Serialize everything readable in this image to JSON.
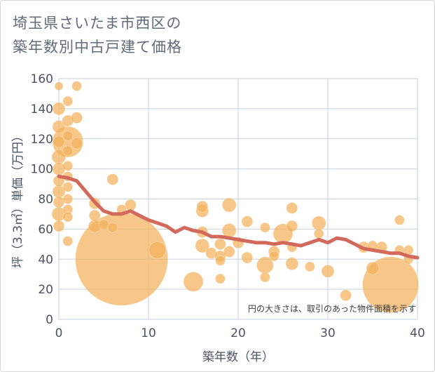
{
  "title_lines": [
    "埼玉県さいたま市西区の",
    "築年数別中古戸建て価格"
  ],
  "chart_data": {
    "type": "scatter",
    "title": "埼玉県さいたま市西区の築年数別中古戸建て価格",
    "xlabel": "築年数（年）",
    "ylabel": "坪（3.3㎡）単価（万円）",
    "xlim": [
      0,
      40
    ],
    "ylim": [
      0,
      160
    ],
    "xticks": [
      0,
      10,
      20,
      30,
      40
    ],
    "yticks": [
      0,
      20,
      40,
      60,
      80,
      100,
      120,
      140,
      160
    ],
    "grid": true,
    "note": "円の大きさは、取引のあった物件面積を示す",
    "colors": {
      "bubble": "#f2b25c",
      "trend": "#d2695a",
      "grid": "#c8d2dc",
      "text": "#4a5560"
    },
    "series": [
      {
        "type": "bubble",
        "points": [
          {
            "x": 0,
            "y": 155,
            "size": 6
          },
          {
            "x": 0,
            "y": 140,
            "size": 9
          },
          {
            "x": 0,
            "y": 128,
            "size": 9
          },
          {
            "x": 0,
            "y": 118,
            "size": 8
          },
          {
            "x": 0,
            "y": 108,
            "size": 10
          },
          {
            "x": 0,
            "y": 100,
            "size": 9
          },
          {
            "x": 0,
            "y": 92,
            "size": 8
          },
          {
            "x": 0,
            "y": 85,
            "size": 9
          },
          {
            "x": 0,
            "y": 78,
            "size": 8
          },
          {
            "x": 0,
            "y": 70,
            "size": 10
          },
          {
            "x": 0,
            "y": 62,
            "size": 8
          },
          {
            "x": 1,
            "y": 145,
            "size": 7
          },
          {
            "x": 1,
            "y": 132,
            "size": 8
          },
          {
            "x": 1,
            "y": 122,
            "size": 7
          },
          {
            "x": 1,
            "y": 112,
            "size": 7
          },
          {
            "x": 1,
            "y": 102,
            "size": 7
          },
          {
            "x": 1,
            "y": 95,
            "size": 7
          },
          {
            "x": 1,
            "y": 88,
            "size": 7
          },
          {
            "x": 1,
            "y": 80,
            "size": 7
          },
          {
            "x": 1,
            "y": 73,
            "size": 7
          },
          {
            "x": 1,
            "y": 68,
            "size": 7
          },
          {
            "x": 1,
            "y": 52,
            "size": 7
          },
          {
            "x": 1,
            "y": 118,
            "size": 22
          },
          {
            "x": 2,
            "y": 155,
            "size": 7
          },
          {
            "x": 2,
            "y": 134,
            "size": 8
          },
          {
            "x": 2,
            "y": 117,
            "size": 8
          },
          {
            "x": 4,
            "y": 77,
            "size": 8
          },
          {
            "x": 4,
            "y": 69,
            "size": 8
          },
          {
            "x": 4,
            "y": 62,
            "size": 9
          },
          {
            "x": 5,
            "y": 63,
            "size": 7
          },
          {
            "x": 6,
            "y": 93,
            "size": 8
          },
          {
            "x": 6,
            "y": 61,
            "size": 7
          },
          {
            "x": 7,
            "y": 40,
            "size": 66
          },
          {
            "x": 7,
            "y": 73,
            "size": 7
          },
          {
            "x": 8,
            "y": 76,
            "size": 8
          },
          {
            "x": 11,
            "y": 46,
            "size": 12
          },
          {
            "x": 15,
            "y": 25,
            "size": 14
          },
          {
            "x": 16,
            "y": 75,
            "size": 8
          },
          {
            "x": 16,
            "y": 72,
            "size": 9
          },
          {
            "x": 16,
            "y": 58,
            "size": 8
          },
          {
            "x": 16,
            "y": 49,
            "size": 10
          },
          {
            "x": 17,
            "y": 44,
            "size": 8
          },
          {
            "x": 18,
            "y": 50,
            "size": 8
          },
          {
            "x": 18,
            "y": 42,
            "size": 8
          },
          {
            "x": 18,
            "y": 39,
            "size": 7
          },
          {
            "x": 18,
            "y": 27,
            "size": 7
          },
          {
            "x": 19,
            "y": 76,
            "size": 10
          },
          {
            "x": 19,
            "y": 59,
            "size": 10
          },
          {
            "x": 19,
            "y": 45,
            "size": 8
          },
          {
            "x": 20,
            "y": 51,
            "size": 8
          },
          {
            "x": 21,
            "y": 65,
            "size": 8
          },
          {
            "x": 21,
            "y": 41,
            "size": 8
          },
          {
            "x": 23,
            "y": 61,
            "size": 7
          },
          {
            "x": 23,
            "y": 36,
            "size": 12
          },
          {
            "x": 23,
            "y": 28,
            "size": 7
          },
          {
            "x": 24,
            "y": 45,
            "size": 8
          },
          {
            "x": 24,
            "y": 42,
            "size": 7
          },
          {
            "x": 25,
            "y": 57,
            "size": 14
          },
          {
            "x": 26,
            "y": 74,
            "size": 8
          },
          {
            "x": 26,
            "y": 62,
            "size": 8
          },
          {
            "x": 26,
            "y": 37,
            "size": 9
          },
          {
            "x": 26,
            "y": 48,
            "size": 7
          },
          {
            "x": 28,
            "y": 35,
            "size": 7
          },
          {
            "x": 29,
            "y": 64,
            "size": 10
          },
          {
            "x": 29,
            "y": 57,
            "size": 7
          },
          {
            "x": 30,
            "y": 32,
            "size": 9
          },
          {
            "x": 32,
            "y": 16,
            "size": 8
          },
          {
            "x": 34,
            "y": 48,
            "size": 8
          },
          {
            "x": 35,
            "y": 49,
            "size": 7
          },
          {
            "x": 35,
            "y": 34,
            "size": 9
          },
          {
            "x": 36,
            "y": 48,
            "size": 8
          },
          {
            "x": 37,
            "y": 23,
            "size": 40
          },
          {
            "x": 38,
            "y": 66,
            "size": 7
          },
          {
            "x": 38,
            "y": 46,
            "size": 7
          },
          {
            "x": 39,
            "y": 46,
            "size": 7
          },
          {
            "x": 39,
            "y": 40,
            "size": 7
          }
        ]
      },
      {
        "type": "line",
        "x": [
          0,
          1,
          2,
          3,
          4,
          5,
          6,
          7,
          8,
          9,
          10,
          11,
          12,
          13,
          14,
          15,
          16,
          17,
          18,
          19,
          20,
          21,
          22,
          23,
          24,
          25,
          26,
          27,
          28,
          29,
          30,
          31,
          32,
          33,
          34,
          35,
          36,
          37,
          38,
          39,
          40
        ],
        "values": [
          95,
          94,
          92,
          85,
          78,
          72,
          70,
          70,
          72,
          69,
          66,
          64,
          62,
          58,
          61,
          59,
          58,
          55,
          55,
          54,
          53,
          52,
          51,
          51,
          50,
          51,
          50,
          49,
          51,
          53,
          51,
          54,
          53,
          50,
          47,
          46,
          45,
          44,
          44,
          42,
          41
        ]
      }
    ]
  }
}
